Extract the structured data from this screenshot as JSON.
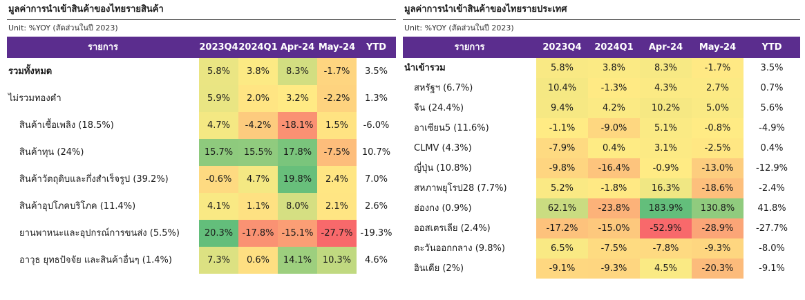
{
  "left": {
    "title": "มูลค่าการนำเข้าสินค้าของไทยรายสินค้า",
    "unit": "Unit: %YOY (สัดส่วนในปี 2023)",
    "headers": [
      "รายการ",
      "2023Q4",
      "2024Q1",
      "Apr-24",
      "May-24",
      "YTD"
    ],
    "rows": [
      {
        "label": "รวมทั้งหมด",
        "bold": true,
        "indent": 0,
        "values": [
          "5.8%",
          "3.8%",
          "8.3%",
          "-1.7%"
        ],
        "nums": [
          5.8,
          3.8,
          8.3,
          -1.7
        ],
        "ytd": "3.5%"
      },
      {
        "label": "ไม่รวมทองคำ",
        "bold": false,
        "indent": 0,
        "values": [
          "5.9%",
          "2.0%",
          "3.2%",
          "-2.2%"
        ],
        "nums": [
          5.9,
          2.0,
          3.2,
          -2.2
        ],
        "ytd": "1.3%"
      },
      {
        "label": "สินค้าเชื้อเพลิง (18.5%)",
        "bold": false,
        "indent": 1,
        "values": [
          "4.7%",
          "-4.2%",
          "-18.1%",
          "1.5%"
        ],
        "nums": [
          4.7,
          -4.2,
          -18.1,
          1.5
        ],
        "ytd": "-6.0%"
      },
      {
        "label": "สินค้าทุน (24%)",
        "bold": false,
        "indent": 1,
        "values": [
          "15.7%",
          "15.5%",
          "17.8%",
          "-7.5%"
        ],
        "nums": [
          15.7,
          15.5,
          17.8,
          -7.5
        ],
        "ytd": "10.7%"
      },
      {
        "label": "สินค้าวัตถุดิบและกึ่งสำเร็จรูป (39.2%)",
        "bold": false,
        "indent": 1,
        "values": [
          "-0.6%",
          "4.7%",
          "19.8%",
          "2.4%"
        ],
        "nums": [
          -0.6,
          4.7,
          19.8,
          2.4
        ],
        "ytd": "7.0%"
      },
      {
        "label": "สินค้าอุปโภคบริโภค (11.4%)",
        "bold": false,
        "indent": 1,
        "values": [
          "4.1%",
          "1.1%",
          "8.0%",
          "2.1%"
        ],
        "nums": [
          4.1,
          1.1,
          8.0,
          2.1
        ],
        "ytd": "2.6%"
      },
      {
        "label": "ยานพาหนะและอุปกรณ์การขนส่ง (5.5%)",
        "bold": false,
        "indent": 1,
        "values": [
          "20.3%",
          "-17.8%",
          "-15.1%",
          "-27.7%"
        ],
        "nums": [
          20.3,
          -17.8,
          -15.1,
          -27.7
        ],
        "ytd": "-19.3%"
      },
      {
        "label": "อาวุธ ยุทธปัจจัย และสินค้าอื่นๆ (1.4%)",
        "bold": false,
        "indent": 1,
        "values": [
          "7.3%",
          "0.6%",
          "14.1%",
          "10.3%"
        ],
        "nums": [
          7.3,
          0.6,
          14.1,
          10.3
        ],
        "ytd": "4.6%"
      }
    ]
  },
  "right": {
    "title": "มูลค่าการนำเข้าสินค้าของไทยรายประเทศ",
    "unit": "Unit: %YOY (สัดส่วนในปี 2023)",
    "headers": [
      "รายการ",
      "2023Q4",
      "2024Q1",
      "Apr-24",
      "May-24",
      "YTD"
    ],
    "rows": [
      {
        "label": "นำเข้ารวม",
        "bold": true,
        "indent": 0,
        "values": [
          "5.8%",
          "3.8%",
          "8.3%",
          "-1.7%"
        ],
        "nums": [
          5.8,
          3.8,
          8.3,
          -1.7
        ],
        "ytd": "3.5%"
      },
      {
        "label": "สหรัฐฯ (6.7%)",
        "bold": false,
        "indent": 1,
        "values": [
          "10.4%",
          "-1.3%",
          "4.3%",
          "2.7%"
        ],
        "nums": [
          10.4,
          -1.3,
          4.3,
          2.7
        ],
        "ytd": "0.7%"
      },
      {
        "label": "จีน (24.4%)",
        "bold": false,
        "indent": 1,
        "values": [
          "9.4%",
          "4.2%",
          "10.2%",
          "5.0%"
        ],
        "nums": [
          9.4,
          4.2,
          10.2,
          5.0
        ],
        "ytd": "5.6%"
      },
      {
        "label": "อาเซียน5 (11.6%)",
        "bold": false,
        "indent": 1,
        "values": [
          "-1.1%",
          "-9.0%",
          "5.1%",
          "-0.8%"
        ],
        "nums": [
          -1.1,
          -9.0,
          5.1,
          -0.8
        ],
        "ytd": "-4.9%"
      },
      {
        "label": "CLMV (4.3%)",
        "bold": false,
        "indent": 1,
        "values": [
          "-7.9%",
          "0.4%",
          "3.1%",
          "-2.5%"
        ],
        "nums": [
          -7.9,
          0.4,
          3.1,
          -2.5
        ],
        "ytd": "0.4%"
      },
      {
        "label": "ญี่ปุ่น (10.8%)",
        "bold": false,
        "indent": 1,
        "values": [
          "-9.8%",
          "-16.4%",
          "-0.9%",
          "-13.0%"
        ],
        "nums": [
          -9.8,
          -16.4,
          -0.9,
          -13.0
        ],
        "ytd": "-12.9%"
      },
      {
        "label": "สหภาพยุโรป28 (7.7%)",
        "bold": false,
        "indent": 1,
        "values": [
          "5.2%",
          "-1.8%",
          "16.3%",
          "-18.6%"
        ],
        "nums": [
          5.2,
          -1.8,
          16.3,
          -18.6
        ],
        "ytd": "-2.4%"
      },
      {
        "label": "ฮ่องกง (0.9%)",
        "bold": false,
        "indent": 1,
        "values": [
          "62.1%",
          "-23.8%",
          "183.9%",
          "130.8%"
        ],
        "nums": [
          62.1,
          -23.8,
          183.9,
          130.8
        ],
        "ytd": "41.8%"
      },
      {
        "label": "ออสเตรเลีย (2.4%)",
        "bold": false,
        "indent": 1,
        "values": [
          "-17.2%",
          "-15.0%",
          "-52.9%",
          "-28.9%"
        ],
        "nums": [
          -17.2,
          -15.0,
          -52.9,
          -28.9
        ],
        "ytd": "-27.7%"
      },
      {
        "label": "ตะวันออกกลาง (9.8%)",
        "bold": false,
        "indent": 1,
        "values": [
          "6.5%",
          "-7.5%",
          "-7.8%",
          "-9.3%"
        ],
        "nums": [
          6.5,
          -7.5,
          -7.8,
          -9.3
        ],
        "ytd": "-8.0%"
      },
      {
        "label": "อินเดีย (2%)",
        "bold": false,
        "indent": 1,
        "values": [
          "-9.1%",
          "-9.3%",
          "4.5%",
          "-20.3%"
        ],
        "nums": [
          -9.1,
          -9.3,
          4.5,
          -20.3
        ],
        "ytd": "-9.1%"
      }
    ]
  },
  "colors": {
    "header_bg": "#5b2d8e",
    "high": "#63be7b",
    "mid": "#ffeb84",
    "low": "#f8696b"
  }
}
